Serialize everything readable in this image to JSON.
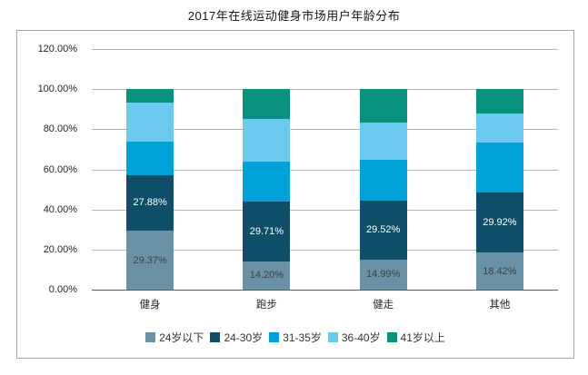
{
  "title": "2017年在线运动健身市场用户年龄分布",
  "chart_data": {
    "type": "bar",
    "subtype": "stacked-vertical",
    "title": "2017年在线运动健身市场用户年龄分布",
    "categories": [
      "健身",
      "跑步",
      "健走",
      "其他"
    ],
    "series": [
      {
        "name": "24岁以下",
        "color": "#6a92a6",
        "values": [
          29.37,
          14.2,
          14.99,
          18.42
        ],
        "data_labels": true,
        "label_color": "#3f3f3f"
      },
      {
        "name": "24-30岁",
        "color": "#0f4e68",
        "values": [
          27.88,
          29.71,
          29.52,
          29.92
        ],
        "data_labels": true,
        "label_color": "#ffffff"
      },
      {
        "name": "31-35岁",
        "color": "#00a0d9",
        "values": [
          16.35,
          20.09,
          20.19,
          24.86
        ],
        "data_labels": false,
        "label_color": "#ffffff"
      },
      {
        "name": "36-40岁",
        "color": "#6cc9ef",
        "values": [
          19.5,
          21.0,
          18.8,
          14.8
        ],
        "data_labels": false,
        "label_color": "#ffffff"
      },
      {
        "name": "41岁以上",
        "color": "#08917c",
        "values": [
          6.9,
          15.0,
          16.5,
          12.0
        ],
        "data_labels": false,
        "label_color": "#ffffff"
      }
    ],
    "y_axis": {
      "min": 0,
      "max": 120,
      "step": 20,
      "tick_labels": [
        "0.00%",
        "20.00%",
        "40.00%",
        "60.00%",
        "80.00%",
        "100.00%",
        "120.00%"
      ]
    },
    "grid": true,
    "legend_position": "bottom",
    "legend_labels": [
      "24岁以下",
      "24-30岁",
      "31-35岁",
      "36-40岁",
      "41岁以上"
    ],
    "shown_data_labels": {
      "健身": [
        "29.37%",
        "27.88%"
      ],
      "跑步": [
        "14.20%",
        "29.71%"
      ],
      "健走": [
        "14.99%",
        "29.52%"
      ],
      "其他": [
        "18.42%",
        "29.92%"
      ]
    }
  },
  "style_colors": {
    "gridline": "#b4b4b4",
    "axis_line": "#5a5a5a",
    "box_border": "#a6a6a6",
    "tick_text": "#262626",
    "title_text": "#151515"
  }
}
